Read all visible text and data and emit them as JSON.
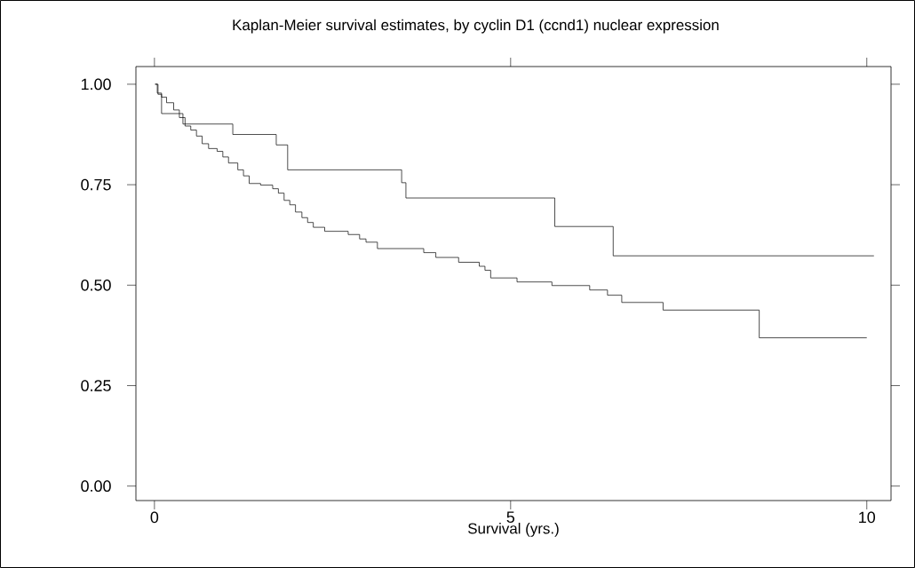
{
  "chart_data": {
    "type": "step",
    "title": "Kaplan-Meier survival estimates, by cyclin D1 (ccnd1) nuclear expression",
    "xlabel": "Survival (yrs.)",
    "xlim": [
      -0.26,
      10.34
    ],
    "ylim": [
      -0.036,
      1.044
    ],
    "xticks": [
      0,
      5,
      10
    ],
    "yticks": [
      {
        "value": 0,
        "label": "0.00"
      },
      {
        "value": 0.25,
        "label": "0.25"
      },
      {
        "value": 0.5,
        "label": "0.50"
      },
      {
        "value": 0.75,
        "label": "0.75"
      },
      {
        "value": 1,
        "label": "1.00"
      }
    ],
    "grid": false,
    "series": [
      {
        "color": "#000000",
        "x": [
          0.01,
          0.05,
          0.1,
          0.4,
          1.1,
          1.71,
          1.87,
          3.47,
          3.53,
          5.62,
          6.44,
          10.1
        ],
        "values": [
          1.0,
          0.975,
          0.927,
          0.901,
          0.875,
          0.849,
          0.787,
          0.755,
          0.717,
          0.646,
          0.573,
          0.573
        ]
      },
      {
        "color": "#000000",
        "x": [
          0.01,
          0.04,
          0.1,
          0.17,
          0.27,
          0.35,
          0.43,
          0.51,
          0.59,
          0.67,
          0.76,
          0.88,
          0.96,
          1.04,
          1.17,
          1.25,
          1.33,
          1.49,
          1.66,
          1.74,
          1.82,
          1.9,
          1.98,
          2.07,
          2.15,
          2.23,
          2.39,
          2.72,
          2.88,
          2.97,
          3.13,
          3.78,
          3.95,
          4.27,
          4.56,
          4.64,
          4.72,
          5.09,
          5.58,
          6.11,
          6.36,
          6.56,
          7.14,
          8.49,
          10.0
        ],
        "values": [
          1.0,
          0.978,
          0.968,
          0.954,
          0.936,
          0.917,
          0.896,
          0.886,
          0.871,
          0.852,
          0.84,
          0.833,
          0.819,
          0.804,
          0.787,
          0.772,
          0.753,
          0.749,
          0.74,
          0.729,
          0.711,
          0.7,
          0.682,
          0.668,
          0.656,
          0.644,
          0.634,
          0.626,
          0.615,
          0.607,
          0.591,
          0.581,
          0.569,
          0.557,
          0.547,
          0.537,
          0.518,
          0.508,
          0.499,
          0.488,
          0.475,
          0.457,
          0.438,
          0.369,
          0.369
        ]
      }
    ]
  }
}
